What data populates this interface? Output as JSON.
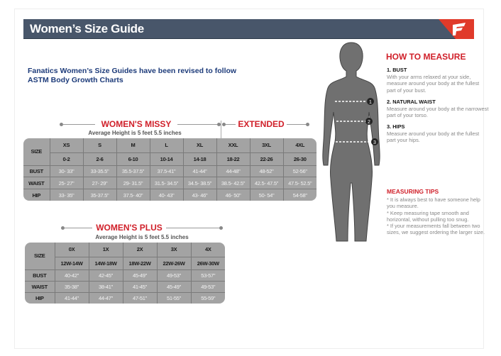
{
  "header": {
    "title": "Women’s Size Guide",
    "logo": "fanatics-logo"
  },
  "intro": [
    "Fanatics Women’s Size Guides have been revised to follow",
    "ASTM Body Growth Charts"
  ],
  "missy": {
    "title": "WOMEN'S MISSY",
    "extended_title": "EXTENDED",
    "subtitle": "Average Height is 5 feet 5.5 inches",
    "size_label": "SIZE",
    "sizes": [
      "XS",
      "S",
      "M",
      "L",
      "XL",
      "XXL",
      "3XL",
      "4XL"
    ],
    "numeric": [
      "0-2",
      "2-6",
      "6-10",
      "10-14",
      "14-18",
      "18-22",
      "22-26",
      "26-30"
    ],
    "rows": [
      {
        "label": "BUST",
        "values": [
          "30- 33\"",
          "33-35.5\"",
          "35.5-37.5\"",
          "37.5-41\"",
          "41-44\"",
          "44-48\"",
          "48-52\"",
          "52-56\""
        ]
      },
      {
        "label": "WAIST",
        "values": [
          "25- 27\"",
          "27- 29\"",
          "29- 31.5\"",
          "31.5- 34.5\"",
          "34.5- 38.5\"",
          "38.5- 42.5\"",
          "42.5- 47.5\"",
          "47.5- 52.5\""
        ]
      },
      {
        "label": "HIP",
        "values": [
          "33- 35\"",
          "35-37.5\"",
          "37.5- 40\"",
          "40- 43\"",
          "43- 46\"",
          "46- 50\"",
          "50- 54\"",
          "54-58\""
        ]
      }
    ]
  },
  "plus": {
    "title": "WOMEN'S PLUS",
    "subtitle": "Average Height is 5 feet 5.5 inches",
    "size_label": "SIZE",
    "sizes": [
      "0X",
      "1X",
      "2X",
      "3X",
      "4X"
    ],
    "numeric": [
      "12W-14W",
      "14W-18W",
      "18W-22W",
      "22W-26W",
      "26W-30W"
    ],
    "rows": [
      {
        "label": "BUST",
        "values": [
          "40-42\"",
          "42-45\"",
          "45-49\"",
          "49-53\"",
          "53-57\""
        ]
      },
      {
        "label": "WAIST",
        "values": [
          "35-38\"",
          "38-41\"",
          "41-45\"",
          "45-49\"",
          "49-53\""
        ]
      },
      {
        "label": "HIP",
        "values": [
          "41-44\"",
          "44-47\"",
          "47-51\"",
          "51-55\"",
          "55-59\""
        ]
      }
    ]
  },
  "how": {
    "title": "HOW TO MEASURE",
    "steps": [
      {
        "title": "1. BUST",
        "text": "With your arms relaxed at your side, measure around your body at the fullest part of your bust."
      },
      {
        "title": "2. NATURAL WAIST",
        "text": "Measure around your body at the narrowest part of your torso."
      },
      {
        "title": "3. HIPS",
        "text": "Measure around your body at the fullest part your hips."
      }
    ],
    "markers": [
      "1",
      "2",
      "3"
    ]
  },
  "tips": {
    "title": "MEASURING TIPS",
    "items": [
      "* It is always best to have someone help you measure.",
      "* Keep measuring tape smooth and horizontal, without pulling too snug.",
      "* If your measurements fall between two sizes, we suggest ordering the larger size."
    ]
  },
  "colors": {
    "header": "#48566a",
    "accent": "#d0202a",
    "intro": "#1d3b7a",
    "table": "#a3a3a3"
  }
}
